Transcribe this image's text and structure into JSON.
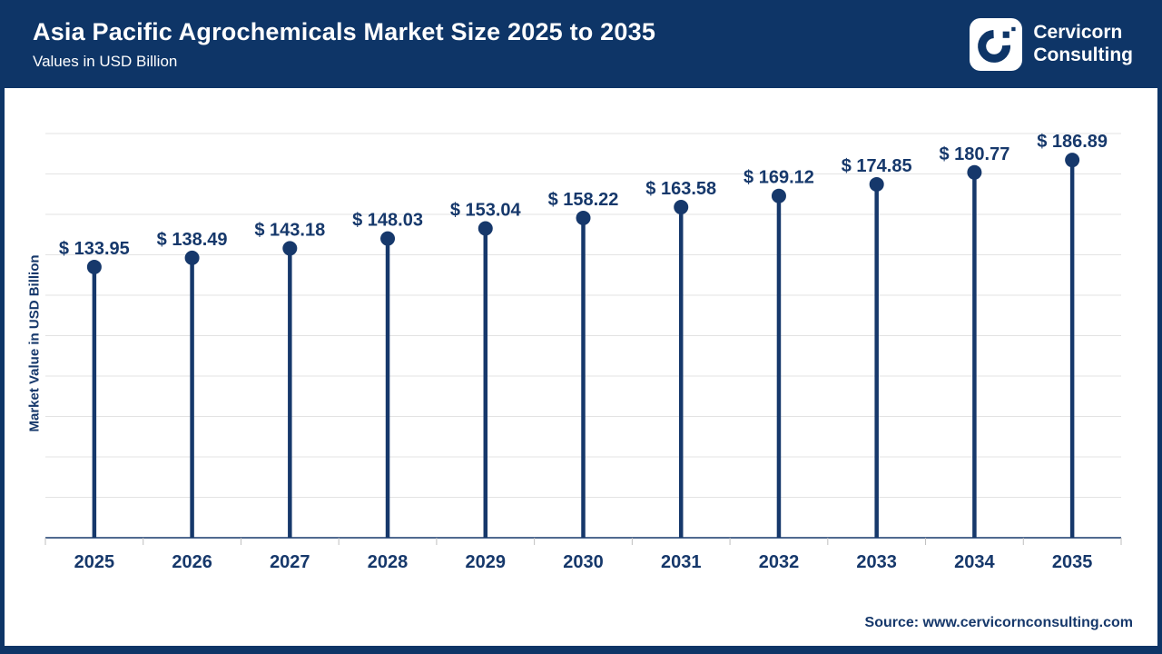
{
  "header": {
    "title": "Asia Pacific Agrochemicals Market Size 2025 to 2035",
    "subtitle": "Values in USD Billion",
    "logo": {
      "name": "Cervicorn Consulting",
      "line1": "Cervicorn",
      "line2": "Consulting"
    }
  },
  "chart_data": {
    "type": "bar",
    "style": "lollipop",
    "title": "Asia Pacific Agrochemicals Market Size 2025 to 2035",
    "subtitle": "Values in USD Billion",
    "categories": [
      "2025",
      "2026",
      "2027",
      "2028",
      "2029",
      "2030",
      "2031",
      "2032",
      "2033",
      "2034",
      "2035"
    ],
    "values": [
      133.95,
      138.49,
      143.18,
      148.03,
      153.04,
      158.22,
      163.58,
      169.12,
      174.85,
      180.77,
      186.89
    ],
    "data_labels": [
      "$ 133.95",
      "$ 138.49",
      "$ 143.18",
      "$ 148.03",
      "$ 153.04",
      "$ 158.22",
      "$ 163.58",
      "$ 169.12",
      "$ 174.85",
      "$ 180.77",
      "$ 186.89"
    ],
    "value_prefix": "$ ",
    "xlabel": "",
    "ylabel": "Market Value in USD Billion",
    "ylim": [
      0,
      200
    ],
    "grid": true,
    "gridline_step": 20,
    "legend": "none"
  },
  "footer": {
    "source": "Source: www.cervicornconsulting.com"
  },
  "colors": {
    "header_bg": "#0e3567",
    "frame": "#0e3567",
    "marker": "#16386b",
    "label_text": "#16386b",
    "gridline": "#e3e3e3",
    "tick": "#bfbfbf",
    "background": "#ffffff"
  }
}
